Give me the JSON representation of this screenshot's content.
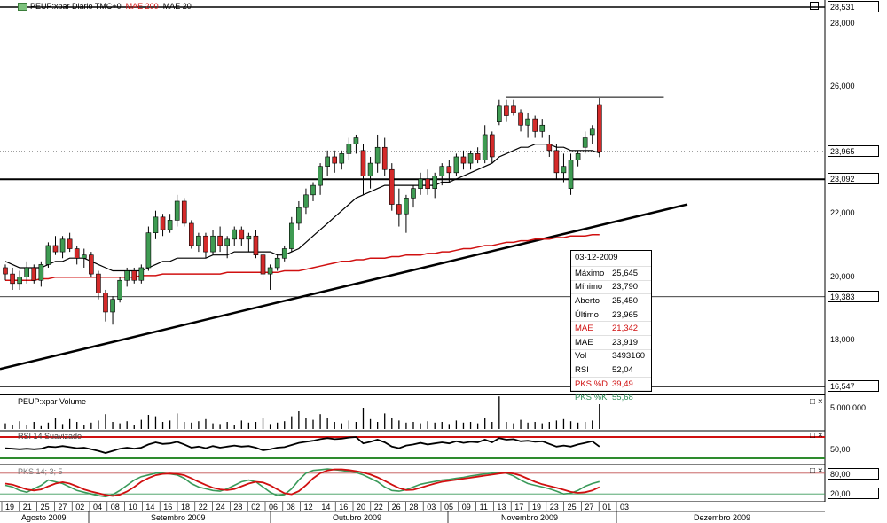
{
  "app": {
    "price_pane_label": "PEUP:xpar Diário TMC+0",
    "mae200_label": "MAE 200",
    "mae20_label": "MAE 20",
    "volume_pane_label": "PEUP:xpar Volume",
    "rsi_pane_label": "RSI 14 Suavizado",
    "pks_pane_label": "PKS 14; 3; 5",
    "pane_buttons": "□ ×",
    "pane_button_single": "□"
  },
  "price_axis": {
    "ticks": [
      "28,000",
      "26,000",
      "22,000",
      "20,000",
      "18,000"
    ],
    "boxed": [
      "28,531",
      "23,965",
      "23,092",
      "19,383",
      "16,547"
    ]
  },
  "volume_axis": {
    "tick": "5.000.000"
  },
  "rsi_axis": {
    "tick": "50,00"
  },
  "pks_axis": {
    "ticks": [
      "80,00",
      "20,00"
    ]
  },
  "info": {
    "date": "03-12-2009",
    "rows": [
      {
        "k": "Máximo",
        "v": "25,645",
        "color": ""
      },
      {
        "k": "Mínimo",
        "v": "23,790",
        "color": ""
      },
      {
        "k": "Aberto",
        "v": "25,450",
        "color": ""
      },
      {
        "k": "Último",
        "v": "23,965",
        "color": ""
      },
      {
        "k": "MAE",
        "v": "21,342",
        "color": "red"
      },
      {
        "k": "MAE",
        "v": "23,919",
        "color": ""
      },
      {
        "k": "Vol",
        "v": "3493160",
        "color": ""
      },
      {
        "k": "RSI",
        "v": "52,04",
        "color": ""
      },
      {
        "k": "PKS %D",
        "v": "39,49",
        "color": "red"
      },
      {
        "k": "PKS %K",
        "v": "55,68",
        "color": "green"
      }
    ]
  },
  "colors": {
    "up": "#3e9b52",
    "down": "#d42a2a",
    "mae200": "#d01010",
    "mae20": "#000000",
    "pks_k": "#3a9a5a",
    "pks_d": "#d01010"
  },
  "chart_data": {
    "type": "candlestick",
    "x_day_labels": [
      "19",
      "21",
      "25",
      "27",
      "02",
      "04",
      "08",
      "10",
      "14",
      "16",
      "18",
      "22",
      "24",
      "28",
      "02",
      "06",
      "08",
      "12",
      "14",
      "16",
      "20",
      "22",
      "26",
      "28",
      "03",
      "05",
      "09",
      "11",
      "13",
      "17",
      "19",
      "23",
      "25",
      "27",
      "01",
      "03"
    ],
    "x_month_labels": [
      "Agosto 2009",
      "Setembro 2009",
      "Outubro 2009",
      "Novembro 2009",
      "Dezembro 2009"
    ],
    "ylim": [
      16.547,
      28.531
    ],
    "candles": [
      [
        20.3,
        20.4,
        19.9,
        20.1
      ],
      [
        20.1,
        20.3,
        19.6,
        19.8
      ],
      [
        19.8,
        20.2,
        19.6,
        20.0
      ],
      [
        20.0,
        20.5,
        19.8,
        20.3
      ],
      [
        20.3,
        20.4,
        19.8,
        19.9
      ],
      [
        19.9,
        20.5,
        19.7,
        20.4
      ],
      [
        20.4,
        21.1,
        20.3,
        21.0
      ],
      [
        21.0,
        21.3,
        20.7,
        20.8
      ],
      [
        20.8,
        21.3,
        20.6,
        21.2
      ],
      [
        21.2,
        21.4,
        20.8,
        20.9
      ],
      [
        20.9,
        21.0,
        20.4,
        20.6
      ],
      [
        20.6,
        20.9,
        20.3,
        20.7
      ],
      [
        20.7,
        20.8,
        20.0,
        20.1
      ],
      [
        20.1,
        20.2,
        19.3,
        19.5
      ],
      [
        19.5,
        19.6,
        18.6,
        18.9
      ],
      [
        18.9,
        19.4,
        18.5,
        19.3
      ],
      [
        19.3,
        20.0,
        19.2,
        19.9
      ],
      [
        19.9,
        20.3,
        19.7,
        20.2
      ],
      [
        20.2,
        20.3,
        19.8,
        19.9
      ],
      [
        19.9,
        20.4,
        19.8,
        20.3
      ],
      [
        20.3,
        21.6,
        20.2,
        21.4
      ],
      [
        21.4,
        22.1,
        21.2,
        21.9
      ],
      [
        21.9,
        22.0,
        21.3,
        21.5
      ],
      [
        21.5,
        22.0,
        21.4,
        21.8
      ],
      [
        21.8,
        22.6,
        21.6,
        22.4
      ],
      [
        22.4,
        22.5,
        21.6,
        21.7
      ],
      [
        21.7,
        21.8,
        20.9,
        21.0
      ],
      [
        21.0,
        21.4,
        20.8,
        21.3
      ],
      [
        21.3,
        21.4,
        20.6,
        20.8
      ],
      [
        20.8,
        21.5,
        20.7,
        21.3
      ],
      [
        21.3,
        21.6,
        20.8,
        21.0
      ],
      [
        21.0,
        21.3,
        20.6,
        21.2
      ],
      [
        21.2,
        21.6,
        21.0,
        21.5
      ],
      [
        21.5,
        21.6,
        21.0,
        21.2
      ],
      [
        21.2,
        21.4,
        20.8,
        21.3
      ],
      [
        21.3,
        21.5,
        20.6,
        20.7
      ],
      [
        20.7,
        20.8,
        19.9,
        20.1
      ],
      [
        20.1,
        20.4,
        19.6,
        20.3
      ],
      [
        20.3,
        20.7,
        20.2,
        20.6
      ],
      [
        20.6,
        21.0,
        20.5,
        20.9
      ],
      [
        20.9,
        21.9,
        20.8,
        21.7
      ],
      [
        21.7,
        22.4,
        21.5,
        22.2
      ],
      [
        22.2,
        22.8,
        22.0,
        22.6
      ],
      [
        22.6,
        23.0,
        22.4,
        22.9
      ],
      [
        22.9,
        23.6,
        22.6,
        23.5
      ],
      [
        23.5,
        24.0,
        23.2,
        23.8
      ],
      [
        23.8,
        24.0,
        23.3,
        23.6
      ],
      [
        23.6,
        24.0,
        23.4,
        23.9
      ],
      [
        23.9,
        24.4,
        23.7,
        24.2
      ],
      [
        24.2,
        24.5,
        23.9,
        24.4
      ],
      [
        24.0,
        24.2,
        22.6,
        23.2
      ],
      [
        23.2,
        23.8,
        22.8,
        23.6
      ],
      [
        23.6,
        24.5,
        23.3,
        24.1
      ],
      [
        24.1,
        24.4,
        23.2,
        23.4
      ],
      [
        23.4,
        23.6,
        22.1,
        22.3
      ],
      [
        22.3,
        22.8,
        21.6,
        22.0
      ],
      [
        22.0,
        22.6,
        21.4,
        22.5
      ],
      [
        22.5,
        22.9,
        22.2,
        22.8
      ],
      [
        22.8,
        23.3,
        22.6,
        23.1
      ],
      [
        23.1,
        23.4,
        22.6,
        22.8
      ],
      [
        22.8,
        23.3,
        22.5,
        23.2
      ],
      [
        23.2,
        23.6,
        22.9,
        23.5
      ],
      [
        23.5,
        23.7,
        23.0,
        23.3
      ],
      [
        23.3,
        23.9,
        23.2,
        23.8
      ],
      [
        23.8,
        24.0,
        23.4,
        23.6
      ],
      [
        23.6,
        24.0,
        23.4,
        23.9
      ],
      [
        23.9,
        24.1,
        23.6,
        23.7
      ],
      [
        23.7,
        24.8,
        23.6,
        24.5
      ],
      [
        24.5,
        24.6,
        23.6,
        23.8
      ],
      [
        24.9,
        25.6,
        24.8,
        25.4
      ],
      [
        25.4,
        25.6,
        24.9,
        25.1
      ],
      [
        25.4,
        25.6,
        25.1,
        25.2
      ],
      [
        25.2,
        25.3,
        24.6,
        24.8
      ],
      [
        24.8,
        25.2,
        24.4,
        25.0
      ],
      [
        25.0,
        25.1,
        24.4,
        24.6
      ],
      [
        24.6,
        25.0,
        24.4,
        24.8
      ],
      [
        24.2,
        24.5,
        23.8,
        24.0
      ],
      [
        24.0,
        24.2,
        23.1,
        23.3
      ],
      [
        23.3,
        23.9,
        23.0,
        23.5
      ],
      [
        22.8,
        23.9,
        22.6,
        23.7
      ],
      [
        23.7,
        24.0,
        23.5,
        23.9
      ],
      [
        24.1,
        24.6,
        23.9,
        24.4
      ],
      [
        24.5,
        24.8,
        24.2,
        24.7
      ],
      [
        25.45,
        25.645,
        23.79,
        23.965
      ]
    ],
    "mae20": [
      20.5,
      20.4,
      20.3,
      20.3,
      20.3,
      20.3,
      20.4,
      20.5,
      20.5,
      20.6,
      20.6,
      20.6,
      20.5,
      20.4,
      20.3,
      20.2,
      20.2,
      20.2,
      20.2,
      20.2,
      20.3,
      20.4,
      20.5,
      20.5,
      20.6,
      20.6,
      20.6,
      20.6,
      20.6,
      20.7,
      20.7,
      20.7,
      20.8,
      20.8,
      20.8,
      20.8,
      20.8,
      20.8,
      20.7,
      20.7,
      20.8,
      20.9,
      21.1,
      21.3,
      21.5,
      21.7,
      21.9,
      22.1,
      22.3,
      22.5,
      22.6,
      22.7,
      22.8,
      22.9,
      22.9,
      22.9,
      22.9,
      22.9,
      22.9,
      22.9,
      22.9,
      23.0,
      23.0,
      23.1,
      23.2,
      23.3,
      23.4,
      23.5,
      23.6,
      23.8,
      23.9,
      24.0,
      24.1,
      24.1,
      24.2,
      24.2,
      24.2,
      24.1,
      24.1,
      24.0,
      24.0,
      24.0,
      24.0,
      23.919
    ],
    "mae200": [
      19.9,
      19.9,
      19.9,
      19.9,
      19.9,
      19.95,
      19.95,
      20.0,
      20.0,
      20.0,
      20.0,
      20.0,
      20.0,
      20.0,
      20.0,
      20.0,
      20.0,
      20.0,
      20.0,
      20.05,
      20.05,
      20.05,
      20.1,
      20.1,
      20.1,
      20.1,
      20.1,
      20.1,
      20.1,
      20.1,
      20.1,
      20.15,
      20.15,
      20.15,
      20.15,
      20.15,
      20.15,
      20.15,
      20.15,
      20.2,
      20.2,
      20.2,
      20.25,
      20.3,
      20.35,
      20.4,
      20.45,
      20.5,
      20.5,
      20.55,
      20.55,
      20.6,
      20.6,
      20.6,
      20.65,
      20.65,
      20.7,
      20.7,
      20.7,
      20.75,
      20.75,
      20.8,
      20.8,
      20.85,
      20.9,
      20.9,
      20.95,
      21.0,
      21.0,
      21.05,
      21.1,
      21.1,
      21.15,
      21.15,
      21.2,
      21.2,
      21.2,
      21.25,
      21.25,
      21.3,
      21.3,
      21.3,
      21.34,
      21.342
    ],
    "volume": [
      0.8,
      0.5,
      1.1,
      0.6,
      1.0,
      0.4,
      0.9,
      1.5,
      0.7,
      1.4,
      1.0,
      0.5,
      0.9,
      1.2,
      2.1,
      1.0,
      0.8,
      1.1,
      0.6,
      1.3,
      2.0,
      1.8,
      1.0,
      1.2,
      2.2,
      1.0,
      0.9,
      1.1,
      1.4,
      0.8,
      0.7,
      1.0,
      0.6,
      1.2,
      0.9,
      1.0,
      1.6,
      0.7,
      0.9,
      1.1,
      1.8,
      2.5,
      1.5,
      1.3,
      2.1,
      1.6,
      1.0,
      0.8,
      1.2,
      1.0,
      3.0,
      1.4,
      1.0,
      2.2,
      1.6,
      1.2,
      0.9,
      1.0,
      0.8,
      1.1,
      0.9,
      1.0,
      0.7,
      1.2,
      0.9,
      1.0,
      0.8,
      1.6,
      1.0,
      4.6,
      1.0,
      0.8,
      1.3,
      0.9,
      1.0,
      0.8,
      1.0,
      1.2,
      1.4,
      1.1,
      0.9,
      1.0,
      1.2,
      3.5
    ],
    "rsi": [
      49,
      48,
      47,
      48,
      47,
      48,
      52,
      51,
      53,
      51,
      49,
      50,
      47,
      44,
      40,
      44,
      48,
      50,
      48,
      50,
      56,
      60,
      57,
      58,
      61,
      56,
      50,
      52,
      49,
      53,
      50,
      52,
      54,
      52,
      53,
      50,
      45,
      47,
      50,
      51,
      55,
      59,
      61,
      63,
      66,
      68,
      66,
      67,
      69,
      70,
      58,
      61,
      65,
      60,
      52,
      49,
      54,
      56,
      59,
      56,
      58,
      60,
      58,
      62,
      59,
      61,
      60,
      65,
      60,
      68,
      65,
      66,
      62,
      63,
      61,
      62,
      57,
      52,
      54,
      52,
      56,
      59,
      62,
      52
    ],
    "pks_k": [
      45,
      40,
      30,
      25,
      35,
      45,
      60,
      55,
      50,
      40,
      30,
      25,
      20,
      15,
      12,
      18,
      30,
      45,
      60,
      70,
      75,
      80,
      80,
      78,
      75,
      65,
      50,
      40,
      35,
      30,
      28,
      35,
      45,
      55,
      60,
      55,
      40,
      25,
      15,
      18,
      35,
      60,
      80,
      88,
      90,
      92,
      90,
      88,
      85,
      82,
      75,
      65,
      55,
      40,
      30,
      28,
      32,
      40,
      48,
      52,
      56,
      60,
      62,
      65,
      68,
      72,
      75,
      78,
      80,
      82,
      80,
      72,
      60,
      50,
      45,
      40,
      35,
      28,
      20,
      22,
      30,
      42,
      50,
      55.68
    ],
    "pks_d": [
      50,
      47,
      40,
      33,
      30,
      33,
      42,
      50,
      54,
      50,
      42,
      33,
      27,
      22,
      17,
      14,
      18,
      27,
      40,
      55,
      66,
      74,
      78,
      79,
      78,
      74,
      65,
      55,
      46,
      38,
      33,
      31,
      34,
      42,
      50,
      55,
      53,
      45,
      33,
      22,
      19,
      28,
      45,
      65,
      80,
      88,
      91,
      91,
      89,
      86,
      82,
      76,
      68,
      58,
      47,
      37,
      31,
      32,
      38,
      44,
      50,
      55,
      58,
      61,
      64,
      67,
      70,
      73,
      76,
      79,
      81,
      79,
      73,
      64,
      55,
      48,
      43,
      38,
      32,
      26,
      23,
      25,
      30,
      39.49
    ]
  }
}
